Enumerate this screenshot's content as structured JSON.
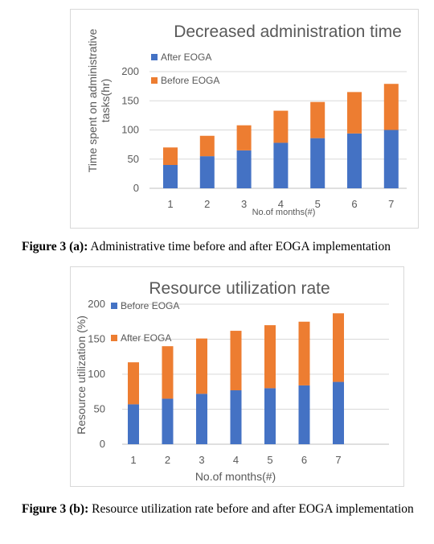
{
  "figures": [
    {
      "caption_label": "Figure 3 (a):",
      "caption_text": " Administrative time before and after EOGA implementation"
    },
    {
      "caption_label": "Figure 3 (b):",
      "caption_text": " Resource utilization rate before and after EOGA implementation"
    }
  ],
  "chart_data": [
    {
      "type": "bar",
      "stacked": true,
      "title": "Decreased administration time",
      "xlabel": "No.of months(#)",
      "ylabel": "Time spent on administrative tasks(hr)",
      "categories": [
        "1",
        "2",
        "3",
        "4",
        "5",
        "6",
        "7"
      ],
      "ylim": [
        0,
        200
      ],
      "yticks": [
        "0",
        "50",
        "100",
        "150",
        "200"
      ],
      "legend_placement": "top-left",
      "gridlines": true,
      "series": [
        {
          "name": "After EOGA",
          "color": "#4472C4",
          "values": [
            40,
            55,
            65,
            78,
            86,
            94,
            100
          ]
        },
        {
          "name": "Before EOGA",
          "color": "#ED7D31",
          "values": [
            30,
            35,
            43,
            55,
            62,
            71,
            79
          ]
        }
      ]
    },
    {
      "type": "bar",
      "stacked": true,
      "title": "Resource utilization rate",
      "xlabel": "No.of months(#)",
      "ylabel": "Resource utilization (%)",
      "categories": [
        "1",
        "2",
        "3",
        "4",
        "5",
        "6",
        "7"
      ],
      "ylim": [
        0,
        200
      ],
      "yticks": [
        "0",
        "50",
        "100",
        "150",
        "200"
      ],
      "legend_placement": "top-left",
      "gridlines": true,
      "series": [
        {
          "name": "Before EOGA",
          "color": "#4472C4",
          "values": [
            57,
            65,
            72,
            77,
            80,
            84,
            89
          ]
        },
        {
          "name": "After EOGA",
          "color": "#ED7D31",
          "values": [
            60,
            75,
            79,
            85,
            90,
            91,
            98
          ]
        }
      ]
    }
  ]
}
